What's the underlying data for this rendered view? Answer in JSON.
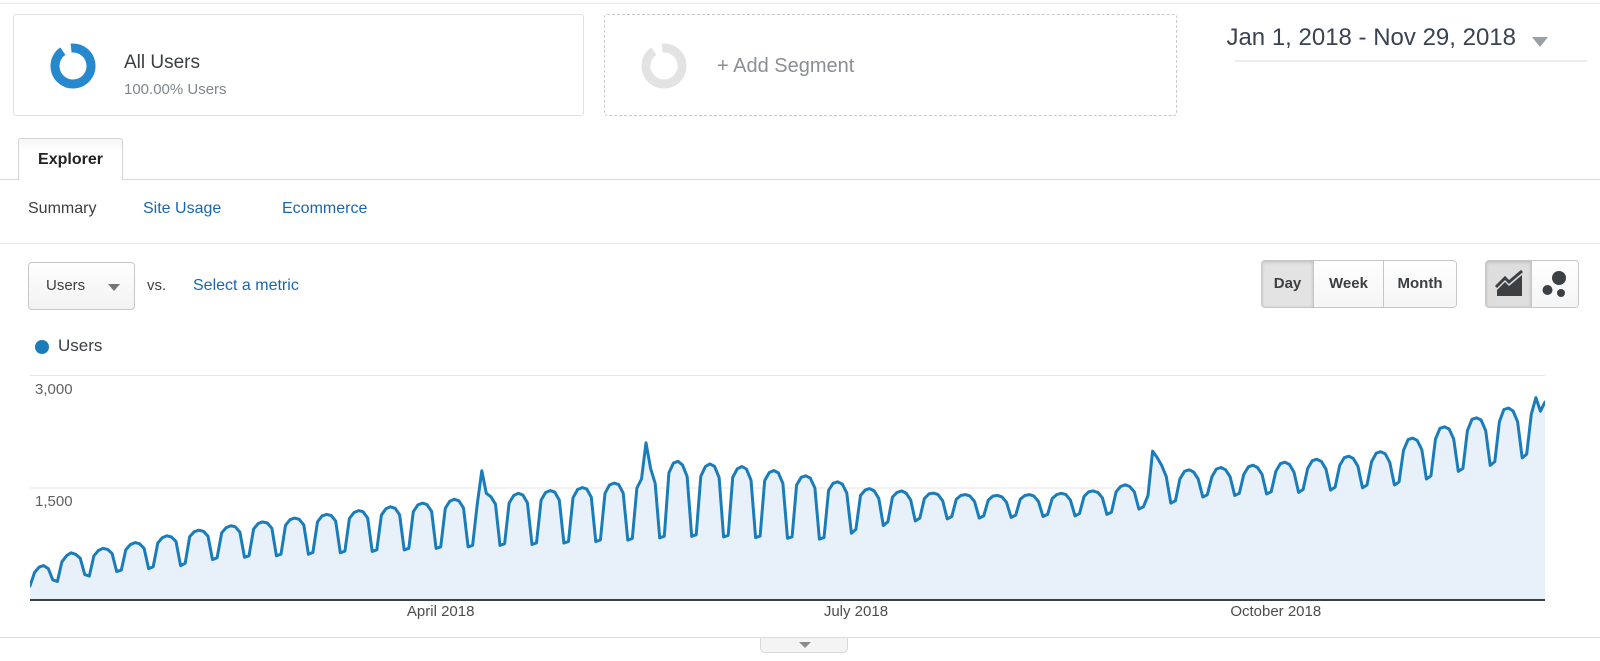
{
  "segments": {
    "all_users": {
      "title": "All Users",
      "subtitle": "100.00% Users"
    },
    "add_segment_label": "+ Add Segment"
  },
  "date_range": {
    "label": "Jan 1, 2018 - Nov 29, 2018"
  },
  "tabs": {
    "explorer": "Explorer"
  },
  "subnav": {
    "items": [
      {
        "label": "Summary",
        "active": true
      },
      {
        "label": "Site Usage",
        "active": false
      },
      {
        "label": "Ecommerce",
        "active": false
      }
    ]
  },
  "metric_toolbar": {
    "metric_selector_value": "Users",
    "vs_label": "vs.",
    "compare_link_label": "Select a metric"
  },
  "granularity": {
    "options": [
      "Day",
      "Week",
      "Month"
    ],
    "active": "Day"
  },
  "chart_type_icons": [
    "area-chart-icon",
    "motion-chart-icon"
  ],
  "legend": {
    "label": "Users"
  },
  "colors": {
    "link": "#1a66ad",
    "active_segment_ring": "#2789cd",
    "inactive_segment_ring": "#e3e3e3",
    "line": "#1b7cba",
    "area_fill": "#e8f1f9"
  },
  "chart_data": {
    "type": "area",
    "title": "Users",
    "granularity": "day",
    "x_start_label": "Jan 1, 2018",
    "x_end_label": "Nov 29, 2018",
    "ylim": [
      0,
      3000
    ],
    "grid": true,
    "y_ticks": [
      {
        "value": 1500,
        "label": "1,500"
      },
      {
        "value": 3000,
        "label": "3,000"
      }
    ],
    "x_month_ticks": [
      {
        "label": "April 2018",
        "day_index": 90
      },
      {
        "label": "July 2018",
        "day_index": 181
      },
      {
        "label": "October 2018",
        "day_index": 273
      }
    ],
    "series": [
      {
        "name": "Users",
        "color": "#1b7cba",
        "fill": "#e8f1f9",
        "values": [
          200,
          380,
          450,
          470,
          430,
          280,
          260,
          520,
          600,
          640,
          620,
          570,
          350,
          330,
          600,
          670,
          700,
          685,
          630,
          390,
          410,
          680,
          750,
          775,
          760,
          700,
          430,
          455,
          770,
          840,
          865,
          850,
          790,
          470,
          500,
          855,
          920,
          940,
          925,
          860,
          550,
          575,
          905,
          975,
          1000,
          985,
          915,
          580,
          600,
          955,
          1030,
          1050,
          1035,
          965,
          600,
          622,
          1005,
          1080,
          1100,
          1085,
          1010,
          620,
          645,
          1050,
          1130,
          1150,
          1135,
          1060,
          640,
          662,
          1095,
          1175,
          1200,
          1185,
          1100,
          658,
          680,
          1140,
          1225,
          1250,
          1230,
          1145,
          678,
          700,
          1185,
          1275,
          1300,
          1280,
          1190,
          698,
          720,
          1230,
          1325,
          1350,
          1330,
          1235,
          718,
          740,
          1280,
          1730,
          1430,
          1385,
          1285,
          738,
          760,
          1300,
          1400,
          1430,
          1408,
          1305,
          750,
          772,
          1340,
          1440,
          1465,
          1445,
          1340,
          768,
          790,
          1370,
          1480,
          1505,
          1488,
          1378,
          788,
          810,
          1430,
          1540,
          1565,
          1545,
          1432,
          808,
          830,
          1500,
          1620,
          2100,
          1760,
          1560,
          838,
          860,
          1700,
          1830,
          1855,
          1805,
          1655,
          858,
          880,
          1655,
          1785,
          1820,
          1788,
          1640,
          850,
          872,
          1640,
          1755,
          1785,
          1752,
          1605,
          842,
          862,
          1600,
          1705,
          1732,
          1700,
          1560,
          832,
          852,
          1540,
          1642,
          1662,
          1632,
          1500,
          822,
          842,
          1470,
          1562,
          1582,
          1552,
          1432,
          900,
          950,
          1400,
          1472,
          1492,
          1462,
          1360,
          1002,
          1052,
          1380,
          1442,
          1462,
          1432,
          1340,
          1062,
          1100,
          1360,
          1422,
          1432,
          1412,
          1330,
          1090,
          1122,
          1350,
          1402,
          1412,
          1392,
          1320,
          1100,
          1130,
          1340,
          1392,
          1402,
          1382,
          1310,
          1110,
          1140,
          1350,
          1400,
          1412,
          1392,
          1320,
          1122,
          1150,
          1360,
          1412,
          1430,
          1412,
          1340,
          1130,
          1160,
          1390,
          1450,
          1462,
          1442,
          1370,
          1150,
          1180,
          1450,
          1520,
          1542,
          1520,
          1450,
          1220,
          1250,
          1400,
          1990,
          1905,
          1800,
          1650,
          1300,
          1330,
          1620,
          1722,
          1742,
          1712,
          1620,
          1380,
          1410,
          1650,
          1752,
          1772,
          1742,
          1650,
          1400,
          1430,
          1680,
          1782,
          1802,
          1772,
          1680,
          1420,
          1450,
          1720,
          1822,
          1842,
          1812,
          1710,
          1442,
          1480,
          1760,
          1862,
          1882,
          1852,
          1750,
          1472,
          1510,
          1800,
          1902,
          1922,
          1892,
          1790,
          1502,
          1540,
          1850,
          1962,
          1982,
          1952,
          1840,
          1540,
          1580,
          2000,
          2142,
          2162,
          2132,
          2010,
          1620,
          1660,
          2150,
          2292,
          2312,
          2282,
          2150,
          1720,
          1760,
          2260,
          2412,
          2432,
          2402,
          2260,
          1800,
          1850,
          2380,
          2542,
          2562,
          2522,
          2380,
          1900,
          1950,
          2480,
          2700,
          2520,
          2640
        ]
      }
    ]
  }
}
